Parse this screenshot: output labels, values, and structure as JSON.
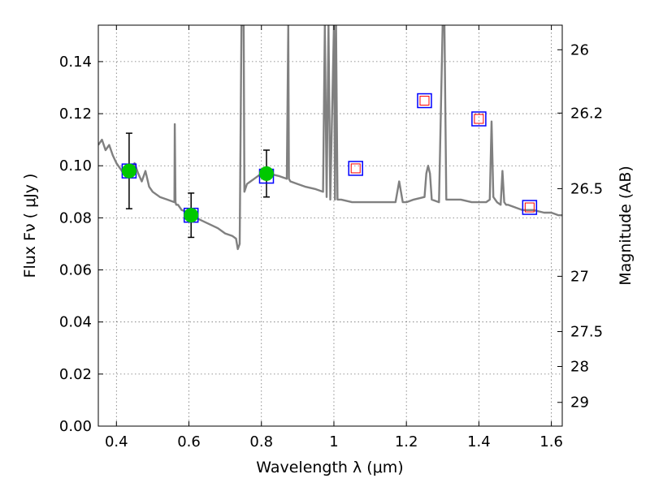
{
  "chart_data": {
    "type": "line",
    "xlabel": "Wavelength  λ (μm)",
    "ylabel": "Flux  Fν  ( μJy )",
    "ylabel_right": "Magnitude (AB)",
    "xlim": [
      0.35,
      1.63
    ],
    "ylim": [
      0.0,
      0.154
    ],
    "grid": true,
    "x_ticks": [
      0.4,
      0.6,
      0.8,
      1.0,
      1.2,
      1.4,
      1.6
    ],
    "x_tick_labels": [
      "0.4",
      "0.6",
      "0.8",
      "1",
      "1.2",
      "1.4",
      "1.6"
    ],
    "y_ticks": [
      0.0,
      0.02,
      0.04,
      0.06,
      0.08,
      0.1,
      0.12,
      0.14
    ],
    "y_tick_labels": [
      "0.00",
      "0.02",
      "0.04",
      "0.06",
      "0.08",
      "0.10",
      "0.12",
      "0.14"
    ],
    "right_ticks": [
      26,
      26.2,
      26.5,
      27,
      27.5,
      28,
      29
    ],
    "right_tick_labels": [
      "26",
      "26.2",
      "26.5",
      "27",
      "27.5",
      "28",
      "29"
    ],
    "series": [
      {
        "kind": "sed_model",
        "color": "#808080",
        "x": [
          0.35,
          0.36,
          0.37,
          0.38,
          0.39,
          0.4,
          0.41,
          0.42,
          0.43,
          0.44,
          0.45,
          0.46,
          0.47,
          0.48,
          0.49,
          0.5,
          0.52,
          0.54,
          0.56,
          0.561,
          0.563,
          0.565,
          0.57,
          0.58,
          0.6,
          0.62,
          0.65,
          0.68,
          0.7,
          0.72,
          0.73,
          0.735,
          0.74,
          0.745,
          0.747,
          0.749,
          0.751,
          0.753,
          0.76,
          0.77,
          0.78,
          0.8,
          0.82,
          0.85,
          0.87,
          0.874,
          0.876,
          0.88,
          0.9,
          0.92,
          0.95,
          0.97,
          0.975,
          0.98,
          0.985,
          0.99,
          1.0,
          1.003,
          1.006,
          1.01,
          1.02,
          1.05,
          1.1,
          1.15,
          1.17,
          1.18,
          1.19,
          1.2,
          1.22,
          1.25,
          1.255,
          1.26,
          1.265,
          1.27,
          1.29,
          1.3,
          1.305,
          1.31,
          1.32,
          1.35,
          1.38,
          1.4,
          1.42,
          1.43,
          1.435,
          1.44,
          1.45,
          1.46,
          1.465,
          1.47,
          1.475,
          1.48,
          1.5,
          1.52,
          1.55,
          1.58,
          1.6,
          1.62,
          1.63
        ],
        "y": [
          0.108,
          0.11,
          0.106,
          0.108,
          0.104,
          0.101,
          0.099,
          0.097,
          0.096,
          0.098,
          0.101,
          0.097,
          0.094,
          0.098,
          0.092,
          0.09,
          0.088,
          0.087,
          0.086,
          0.116,
          0.086,
          0.085,
          0.085,
          0.083,
          0.082,
          0.08,
          0.078,
          0.076,
          0.074,
          0.073,
          0.072,
          0.068,
          0.07,
          0.154,
          0.154,
          0.154,
          0.154,
          0.09,
          0.093,
          0.094,
          0.095,
          0.097,
          0.097,
          0.096,
          0.095,
          0.154,
          0.095,
          0.094,
          0.093,
          0.092,
          0.091,
          0.09,
          0.154,
          0.088,
          0.154,
          0.087,
          0.154,
          0.087,
          0.154,
          0.087,
          0.087,
          0.086,
          0.086,
          0.086,
          0.086,
          0.094,
          0.086,
          0.086,
          0.087,
          0.088,
          0.097,
          0.1,
          0.097,
          0.087,
          0.086,
          0.154,
          0.154,
          0.087,
          0.087,
          0.087,
          0.086,
          0.086,
          0.086,
          0.087,
          0.117,
          0.088,
          0.086,
          0.085,
          0.098,
          0.086,
          0.085,
          0.085,
          0.084,
          0.083,
          0.083,
          0.082,
          0.082,
          0.081,
          0.081
        ]
      },
      {
        "kind": "observed_photometry",
        "color": "#00c800",
        "x": [
          0.435,
          0.606,
          0.814
        ],
        "y": [
          0.098,
          0.081,
          0.097
        ],
        "yerr": [
          0.0145,
          0.0085,
          0.009
        ]
      },
      {
        "kind": "model_photometry",
        "color": "#0000ff",
        "x": [
          0.435,
          0.606,
          0.814,
          1.06,
          1.25,
          1.4,
          1.54
        ],
        "y": [
          0.098,
          0.081,
          0.096,
          0.099,
          0.125,
          0.118,
          0.084
        ]
      },
      {
        "kind": "predicted_photometry",
        "color": "#ff0000",
        "x": [
          1.06,
          1.25,
          1.4,
          1.54
        ],
        "y": [
          0.099,
          0.125,
          0.118,
          0.084
        ]
      }
    ]
  }
}
